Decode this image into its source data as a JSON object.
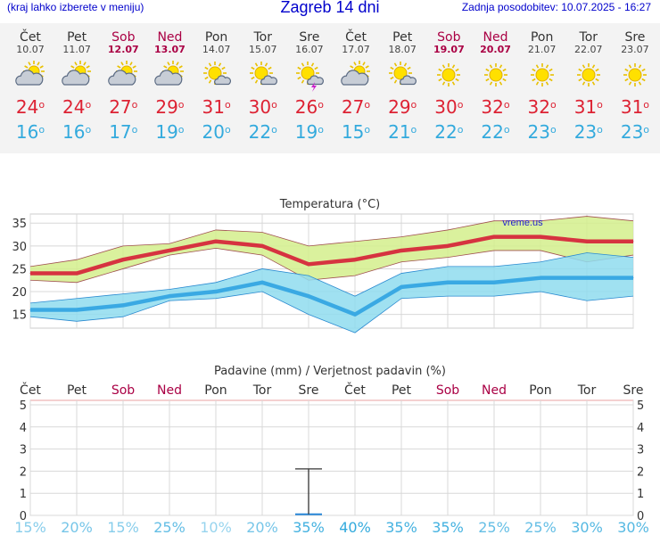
{
  "header": {
    "menu_hint": "(kraj lahko izberete v meniju)",
    "title": "Zagreb 14 dni",
    "updated": "Zadnja posodobitev: 10.07.2025 - 16:27"
  },
  "colors": {
    "max_line": "#d63340",
    "max_band": "#d4ee8c",
    "min_line": "#3aa9e3",
    "min_band": "#8fdcee",
    "weekend": "#aa0044",
    "prob_text": "#33aadd"
  },
  "forecast": [
    {
      "day": "Čet",
      "date": "10.07",
      "icon": "cloud-sun-icon",
      "tmax": "24",
      "tmin": "16",
      "weekend": false
    },
    {
      "day": "Pet",
      "date": "11.07",
      "icon": "cloud-sun-icon",
      "tmax": "24",
      "tmin": "16",
      "weekend": false
    },
    {
      "day": "Sob",
      "date": "12.07",
      "icon": "cloud-sun-icon",
      "tmax": "27",
      "tmin": "17",
      "weekend": true
    },
    {
      "day": "Ned",
      "date": "13.07",
      "icon": "cloud-sun-icon",
      "tmax": "29",
      "tmin": "19",
      "weekend": true
    },
    {
      "day": "Pon",
      "date": "14.07",
      "icon": "sun-small-cloud-icon",
      "tmax": "31",
      "tmin": "20",
      "weekend": false
    },
    {
      "day": "Tor",
      "date": "15.07",
      "icon": "sun-small-cloud-icon",
      "tmax": "30",
      "tmin": "22",
      "weekend": false
    },
    {
      "day": "Sre",
      "date": "16.07",
      "icon": "sun-cloud-storm-icon",
      "tmax": "26",
      "tmin": "19",
      "weekend": false
    },
    {
      "day": "Čet",
      "date": "17.07",
      "icon": "cloud-sun-icon",
      "tmax": "27",
      "tmin": "15",
      "weekend": false
    },
    {
      "day": "Pet",
      "date": "18.07",
      "icon": "sun-small-cloud-icon",
      "tmax": "29",
      "tmin": "21",
      "weekend": false
    },
    {
      "day": "Sob",
      "date": "19.07",
      "icon": "sun-icon",
      "tmax": "30",
      "tmin": "22",
      "weekend": true
    },
    {
      "day": "Ned",
      "date": "20.07",
      "icon": "sun-icon",
      "tmax": "32",
      "tmin": "22",
      "weekend": true
    },
    {
      "day": "Pon",
      "date": "21.07",
      "icon": "sun-icon",
      "tmax": "32",
      "tmin": "23",
      "weekend": false
    },
    {
      "day": "Tor",
      "date": "22.07",
      "icon": "sun-icon",
      "tmax": "31",
      "tmin": "23",
      "weekend": false
    },
    {
      "day": "Sre",
      "date": "23.07",
      "icon": "sun-icon",
      "tmax": "31",
      "tmin": "23",
      "weekend": false
    }
  ],
  "chart_data": [
    {
      "type": "line",
      "title": "Temperatura (°C)",
      "watermark": "vreme.us",
      "x": [
        "10.07",
        "11.07",
        "12.07",
        "13.07",
        "14.07",
        "15.07",
        "16.07",
        "17.07",
        "18.07",
        "19.07",
        "20.07",
        "21.07",
        "22.07",
        "23.07"
      ],
      "ylim": [
        12,
        37
      ],
      "yticks": [
        15,
        20,
        25,
        30,
        35
      ],
      "grid": true,
      "series": [
        {
          "role": "max",
          "values": [
            24,
            24,
            27,
            29,
            31,
            30,
            26,
            27,
            29,
            30,
            32,
            32,
            31,
            31
          ],
          "band_low": [
            22.5,
            22,
            25,
            28,
            29.5,
            28,
            22.5,
            23.5,
            26.5,
            27.5,
            29,
            29,
            26.5,
            28
          ],
          "band_high": [
            25.5,
            27,
            30,
            30.5,
            33.5,
            33,
            30,
            31,
            32,
            33.5,
            35.5,
            35.5,
            36.5,
            35.5
          ]
        },
        {
          "role": "min",
          "values": [
            16,
            16,
            17,
            19,
            20,
            22,
            19,
            15,
            21,
            22,
            22,
            23,
            23,
            23
          ],
          "band_low": [
            14.5,
            13.5,
            14.5,
            18,
            18.5,
            20,
            15,
            11,
            18.5,
            19,
            19,
            20,
            18,
            19
          ],
          "band_high": [
            17.5,
            18.5,
            19.5,
            20.5,
            22,
            25,
            23.5,
            19,
            24,
            25.5,
            25.5,
            26.5,
            28.5,
            27.5
          ]
        }
      ]
    },
    {
      "type": "bar",
      "title": "Padavine (mm) / Verjetnost padavin (%)",
      "categories": [
        "Čet",
        "Pet",
        "Sob",
        "Ned",
        "Pon",
        "Tor",
        "Sre",
        "Čet",
        "Pet",
        "Sob",
        "Ned",
        "Pon",
        "Tor",
        "Sre"
      ],
      "weekend": [
        false,
        false,
        true,
        true,
        false,
        false,
        false,
        false,
        false,
        true,
        true,
        false,
        false,
        false
      ],
      "ylim": [
        0,
        5.2
      ],
      "yticks": [
        0,
        1,
        2,
        3,
        4,
        5
      ],
      "grid": true,
      "values": [
        0,
        0,
        0,
        0,
        0,
        0,
        0.05,
        0,
        0,
        0,
        0,
        0,
        0,
        0
      ],
      "error_high": [
        null,
        null,
        null,
        null,
        null,
        null,
        2.1,
        null,
        null,
        null,
        null,
        null,
        null,
        null
      ],
      "probability": [
        "15%",
        "20%",
        "15%",
        "25%",
        "10%",
        "20%",
        "35%",
        "40%",
        "35%",
        "35%",
        "25%",
        "25%",
        "30%",
        "30%"
      ],
      "probability_values": [
        15,
        20,
        15,
        25,
        10,
        20,
        35,
        40,
        35,
        35,
        25,
        25,
        30,
        30
      ]
    }
  ]
}
